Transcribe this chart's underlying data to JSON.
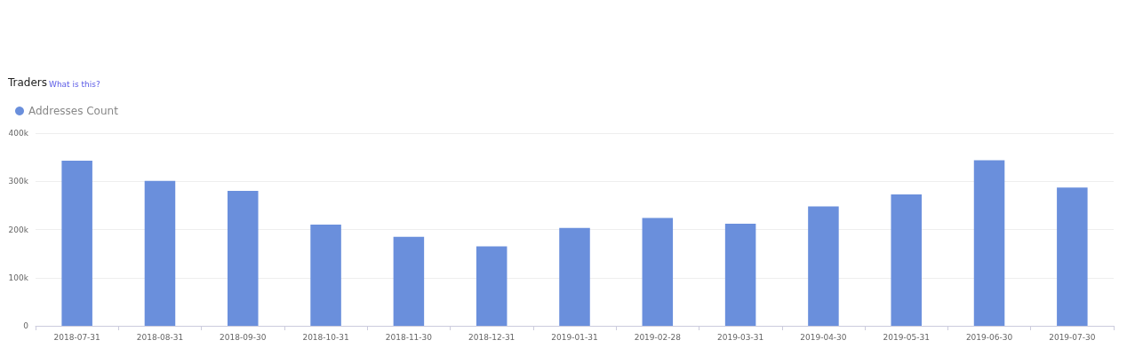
{
  "chart_data": {
    "type": "bar",
    "title": "Traders",
    "subtitle": "What is this?",
    "categories": [
      "2018-07-31",
      "2018-08-31",
      "2018-09-30",
      "2018-10-31",
      "2018-11-30",
      "2018-12-31",
      "2019-01-31",
      "2019-02-28",
      "2019-03-31",
      "2019-04-30",
      "2019-05-31",
      "2019-06-30",
      "2019-07-30"
    ],
    "series": [
      {
        "name": "Addresses Count",
        "color": "#6a8fdc",
        "values": [
          343000,
          301000,
          280000,
          210000,
          185000,
          165000,
          203000,
          224000,
          212000,
          248000,
          273000,
          344000,
          287000
        ]
      }
    ],
    "ylim": [
      0,
      400000
    ],
    "yticks": [
      {
        "value": 0,
        "label": "0"
      },
      {
        "value": 100000,
        "label": "100k"
      },
      {
        "value": 200000,
        "label": "200k"
      },
      {
        "value": 300000,
        "label": "300k"
      },
      {
        "value": 400000,
        "label": "400k"
      }
    ],
    "grid": "y",
    "legend": "top left"
  }
}
